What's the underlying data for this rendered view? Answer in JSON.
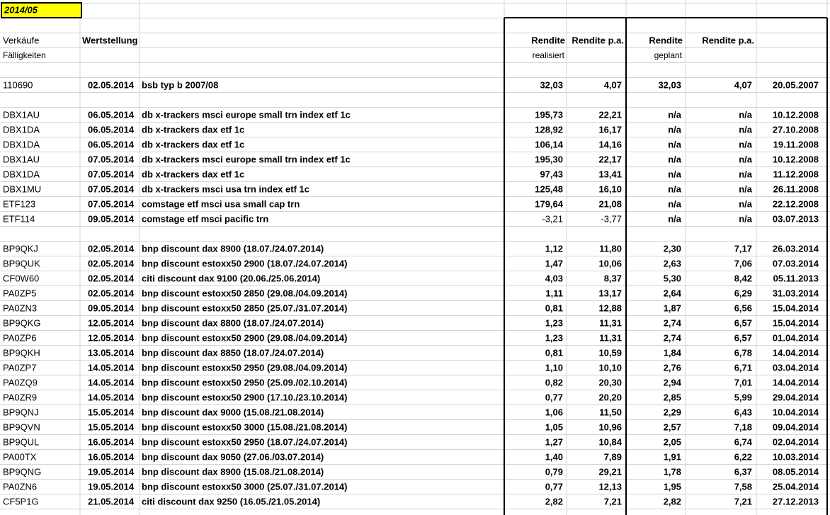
{
  "sheet": {
    "month": "2014/05",
    "headers": {
      "col_a": "Verkäufe",
      "col_a2": "Fälligkeiten",
      "col_b": "Wertstellung",
      "col_d": "Rendite",
      "col_d2": "realisiert",
      "col_e": "Rendite p.a.",
      "col_f": "Rendite",
      "col_f2": "geplant",
      "col_g": "Rendite p.a."
    },
    "groups": [
      [
        {
          "cells": [
            "110690",
            "02.05.2014",
            "bsb typ b 2007/08",
            "32,03",
            "4,07",
            "32,03",
            "4,07",
            "20.05.2007"
          ]
        }
      ],
      [
        {
          "cells": [
            "DBX1AU",
            "06.05.2014",
            "db x-trackers msci europe small trn index etf 1c",
            "195,73",
            "22,21",
            "n/a",
            "n/a",
            "10.12.2008"
          ]
        },
        {
          "cells": [
            "DBX1DA",
            "06.05.2014",
            "db x-trackers dax etf 1c",
            "128,92",
            "16,17",
            "n/a",
            "n/a",
            "27.10.2008"
          ]
        },
        {
          "cells": [
            "DBX1DA",
            "06.05.2014",
            "db x-trackers dax etf 1c",
            "106,14",
            "14,16",
            "n/a",
            "n/a",
            "19.11.2008"
          ]
        },
        {
          "cells": [
            "DBX1AU",
            "07.05.2014",
            "db x-trackers msci europe small trn index etf 1c",
            "195,30",
            "22,17",
            "n/a",
            "n/a",
            "10.12.2008"
          ]
        },
        {
          "cells": [
            "DBX1DA",
            "07.05.2014",
            "db x-trackers dax etf 1c",
            "97,43",
            "13,41",
            "n/a",
            "n/a",
            "11.12.2008"
          ]
        },
        {
          "cells": [
            "DBX1MU",
            "07.05.2014",
            "db x-trackers msci usa trn index etf 1c",
            "125,48",
            "16,10",
            "n/a",
            "n/a",
            "26.11.2008"
          ]
        },
        {
          "cells": [
            "ETF123",
            "07.05.2014",
            "comstage etf msci usa small cap trn",
            "179,64",
            "21,08",
            "n/a",
            "n/a",
            "22.12.2008"
          ]
        },
        {
          "cells": [
            "ETF114",
            "09.05.2014",
            "comstage etf msci pacific trn",
            "-3,21",
            "-3,77",
            "n/a",
            "n/a",
            "03.07.2013"
          ],
          "realized_color": "#ff0000"
        }
      ],
      [
        {
          "cells": [
            "BP9QKJ",
            "02.05.2014",
            "bnp discount dax 8900 (18.07./24.07.2014)",
            "1,12",
            "11,80",
            "2,30",
            "7,17",
            "26.03.2014"
          ]
        },
        {
          "cells": [
            "BP9QUK",
            "02.05.2014",
            "bnp discount estoxx50 2900 (18.07./24.07.2014)",
            "1,47",
            "10,06",
            "2,63",
            "7,06",
            "07.03.2014"
          ]
        },
        {
          "cells": [
            "CF0W60",
            "02.05.2014",
            "citi discount dax 9100 (20.06./25.06.2014)",
            "4,03",
            "8,37",
            "5,30",
            "8,42",
            "05.11.2013"
          ]
        },
        {
          "cells": [
            "PA0ZP5",
            "02.05.2014",
            "bnp discount estoxx50 2850 (29.08./04.09.2014)",
            "1,11",
            "13,17",
            "2,64",
            "6,29",
            "31.03.2014"
          ]
        },
        {
          "cells": [
            "PA0ZN3",
            "09.05.2014",
            "bnp discount estoxx50 2850 (25.07./31.07.2014)",
            "0,81",
            "12,88",
            "1,87",
            "6,56",
            "15.04.2014"
          ]
        },
        {
          "cells": [
            "BP9QKG",
            "12.05.2014",
            "bnp discount dax 8800 (18.07./24.07.2014)",
            "1,23",
            "11,31",
            "2,74",
            "6,57",
            "15.04.2014"
          ]
        },
        {
          "cells": [
            "PA0ZP6",
            "12.05.2014",
            "bnp discount estoxx50 2900 (29.08./04.09.2014)",
            "1,23",
            "11,31",
            "2,74",
            "6,57",
            "01.04.2014"
          ]
        },
        {
          "cells": [
            "BP9QKH",
            "13.05.2014",
            "bnp discount dax 8850 (18.07./24.07.2014)",
            "0,81",
            "10,59",
            "1,84",
            "6,78",
            "14.04.2014"
          ]
        },
        {
          "cells": [
            "PA0ZP7",
            "14.05.2014",
            "bnp discount estoxx50 2950 (29.08./04.09.2014)",
            "1,10",
            "10,10",
            "2,76",
            "6,71",
            "03.04.2014"
          ]
        },
        {
          "cells": [
            "PA0ZQ9",
            "14.05.2014",
            "bnp discount estoxx50 2950 (25.09./02.10.2014)",
            "0,82",
            "20,30",
            "2,94",
            "7,01",
            "14.04.2014"
          ]
        },
        {
          "cells": [
            "PA0ZR9",
            "14.05.2014",
            "bnp discount estoxx50 2900 (17.10./23.10.2014)",
            "0,77",
            "20,20",
            "2,85",
            "5,99",
            "29.04.2014"
          ]
        },
        {
          "cells": [
            "BP9QNJ",
            "15.05.2014",
            "bnp discount dax 9000 (15.08./21.08.2014)",
            "1,06",
            "11,50",
            "2,29",
            "6,43",
            "10.04.2014"
          ]
        },
        {
          "cells": [
            "BP9QVN",
            "15.05.2014",
            "bnp discount estoxx50 3000 (15.08./21.08.2014)",
            "1,05",
            "10,96",
            "2,57",
            "7,18",
            "09.04.2014"
          ]
        },
        {
          "cells": [
            "BP9QUL",
            "16.05.2014",
            "bnp discount estoxx50 2950 (18.07./24.07.2014)",
            "1,27",
            "10,84",
            "2,05",
            "6,74",
            "02.04.2014"
          ]
        },
        {
          "cells": [
            "PA00TX",
            "16.05.2014",
            "bnp discount dax 9050 (27.06./03.07.2014)",
            "1,40",
            "7,89",
            "1,91",
            "6,22",
            "10.03.2014"
          ]
        },
        {
          "cells": [
            "BP9QNG",
            "19.05.2014",
            "bnp discount dax 8900 (15.08./21.08.2014)",
            "0,79",
            "29,21",
            "1,78",
            "6,37",
            "08.05.2014"
          ]
        },
        {
          "cells": [
            "PA0ZN6",
            "19.05.2014",
            "bnp discount estoxx50 3000 (25.07./31.07.2014)",
            "0,77",
            "12,13",
            "1,95",
            "7,58",
            "25.04.2014"
          ]
        },
        {
          "cells": [
            "CF5P1G",
            "21.05.2014",
            "citi discount dax 9250 (16.05./21.05.2014)",
            "2,82",
            "7,21",
            "2,82",
            "7,21",
            "27.12.2013"
          ]
        }
      ]
    ]
  }
}
